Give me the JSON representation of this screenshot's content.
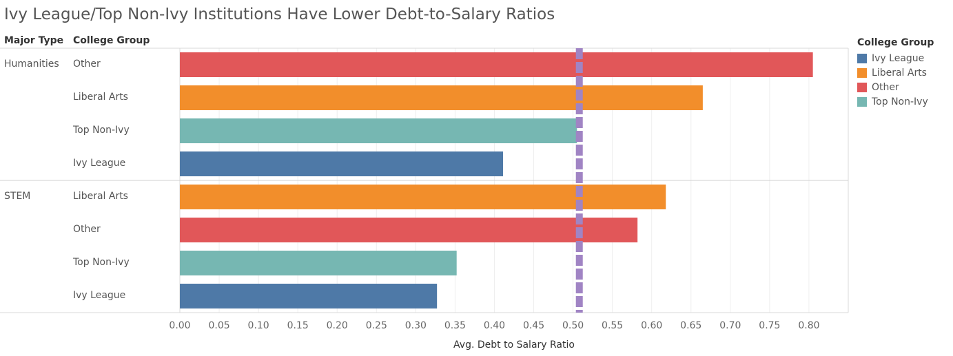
{
  "title": "Ivy League/Top Non-Ivy Institutions Have Lower Debt-to-Salary Ratios",
  "headers": {
    "major_type": "Major Type",
    "college_group": "College Group"
  },
  "legend": {
    "title": "College Group",
    "items": [
      {
        "label": "Ivy League",
        "color": "#4e79a7"
      },
      {
        "label": "Liberal Arts",
        "color": "#f28e2b"
      },
      {
        "label": "Other",
        "color": "#e15759"
      },
      {
        "label": "Top Non-Ivy",
        "color": "#76b7b2"
      }
    ]
  },
  "chart_data": {
    "type": "bar",
    "orientation": "horizontal",
    "title": "Ivy League/Top Non-Ivy Institutions Have Lower Debt-to-Salary Ratios",
    "xlabel": "Avg. Debt to Salary Ratio",
    "xlim": [
      0,
      0.85
    ],
    "xticks": [
      "0.00",
      "0.05",
      "0.10",
      "0.15",
      "0.20",
      "0.25",
      "0.30",
      "0.35",
      "0.40",
      "0.45",
      "0.50",
      "0.55",
      "0.60",
      "0.65",
      "0.70",
      "0.75",
      "0.80"
    ],
    "reference_line": {
      "value": 0.508,
      "style": "dashed",
      "color": "#a084c4"
    },
    "groups": [
      {
        "major_type": "Humanities",
        "bars": [
          {
            "college_group": "Other",
            "value": 0.805,
            "color": "#e15759"
          },
          {
            "college_group": "Liberal Arts",
            "value": 0.665,
            "color": "#f28e2b"
          },
          {
            "college_group": "Top Non-Ivy",
            "value": 0.505,
            "color": "#76b7b2"
          },
          {
            "college_group": "Ivy League",
            "value": 0.411,
            "color": "#4e79a7"
          }
        ]
      },
      {
        "major_type": "STEM",
        "bars": [
          {
            "college_group": "Liberal Arts",
            "value": 0.618,
            "color": "#f28e2b"
          },
          {
            "college_group": "Other",
            "value": 0.582,
            "color": "#e15759"
          },
          {
            "college_group": "Top Non-Ivy",
            "value": 0.352,
            "color": "#76b7b2"
          },
          {
            "college_group": "Ivy League",
            "value": 0.327,
            "color": "#4e79a7"
          }
        ]
      }
    ]
  }
}
